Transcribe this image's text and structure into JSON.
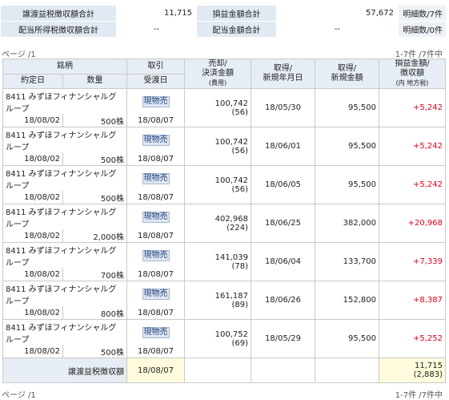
{
  "summary": {
    "row1": {
      "label_a": "譲渡益税徴収額合計",
      "value_a": "11,715",
      "label_b": "損益金額合計",
      "value_b": "57,672",
      "count": "明細数/7件"
    },
    "row2": {
      "label_a": "配当所得税徴収額合計",
      "value_a": "--",
      "label_b": "配当金額合計",
      "value_b": "--",
      "count": "明細数/0件"
    }
  },
  "pager": {
    "page": "ページ /1",
    "range": "1-7件 /7件中"
  },
  "headers": {
    "meigara": "銘柄",
    "torihiki": "取引",
    "uri_1": "売却/",
    "uri_2": "決済金額",
    "uri_3": "(費用)",
    "shu_1": "取得/",
    "shu_2": "新規年月日",
    "kin_1": "取得/",
    "kin_2": "新規金額",
    "son_1": "損益金額/",
    "son_2": "徴収額",
    "son_3": "(内 地方税)",
    "yakujo": "約定日",
    "suryo": "数量",
    "ukewatashi": "受渡日"
  },
  "rows": [
    {
      "name1": "8411 みずほフィナンシャルグ",
      "name2": "ループ",
      "date": "18/08/02",
      "qty": "500株",
      "type": "現物売",
      "settle": "18/08/07",
      "amount": "100,742",
      "fee": "(56)",
      "acq_date": "18/05/30",
      "acq_amount": "95,500",
      "pl": "+5,242"
    },
    {
      "name1": "8411 みずほフィナンシャルグ",
      "name2": "ループ",
      "date": "18/08/02",
      "qty": "500株",
      "type": "現物売",
      "settle": "18/08/07",
      "amount": "100,742",
      "fee": "(56)",
      "acq_date": "18/06/01",
      "acq_amount": "95,500",
      "pl": "+5,242"
    },
    {
      "name1": "8411 みずほフィナンシャルグ",
      "name2": "ループ",
      "date": "18/08/02",
      "qty": "500株",
      "type": "現物売",
      "settle": "18/08/07",
      "amount": "100,742",
      "fee": "(56)",
      "acq_date": "18/06/05",
      "acq_amount": "95,500",
      "pl": "+5,242"
    },
    {
      "name1": "8411 みずほフィナンシャルグ",
      "name2": "ループ",
      "date": "18/08/02",
      "qty": "2,000株",
      "type": "現物売",
      "settle": "18/08/07",
      "amount": "402,968",
      "fee": "(224)",
      "acq_date": "18/06/25",
      "acq_amount": "382,000",
      "pl": "+20,968"
    },
    {
      "name1": "8411 みずほフィナンシャルグ",
      "name2": "ループ",
      "date": "18/08/02",
      "qty": "700株",
      "type": "現物売",
      "settle": "18/08/07",
      "amount": "141,039",
      "fee": "(78)",
      "acq_date": "18/06/04",
      "acq_amount": "133,700",
      "pl": "+7,339"
    },
    {
      "name1": "8411 みずほフィナンシャルグ",
      "name2": "ループ",
      "date": "18/08/02",
      "qty": "800株",
      "type": "現物売",
      "settle": "18/08/07",
      "amount": "161,187",
      "fee": "(89)",
      "acq_date": "18/06/26",
      "acq_amount": "152,800",
      "pl": "+8,387"
    },
    {
      "name1": "8411 みずほフィナンシャルグ",
      "name2": "ループ",
      "date": "18/08/02",
      "qty": "500株",
      "type": "現物売",
      "settle": "18/08/07",
      "amount": "100,752",
      "fee": "(69)",
      "acq_date": "18/05/29",
      "acq_amount": "95,500",
      "pl": "+5,252"
    }
  ],
  "total": {
    "label": "譲渡益税徴収額",
    "date": "18/08/07",
    "value": "11,715",
    "local": "(2,883)"
  },
  "footer": {
    "page": "ページ /1",
    "range": "1-7件 /7件中"
  },
  "colors": {
    "positive": "#e0001b",
    "header_bg": "#e6edf5",
    "total_bg": "#fffbdc"
  }
}
